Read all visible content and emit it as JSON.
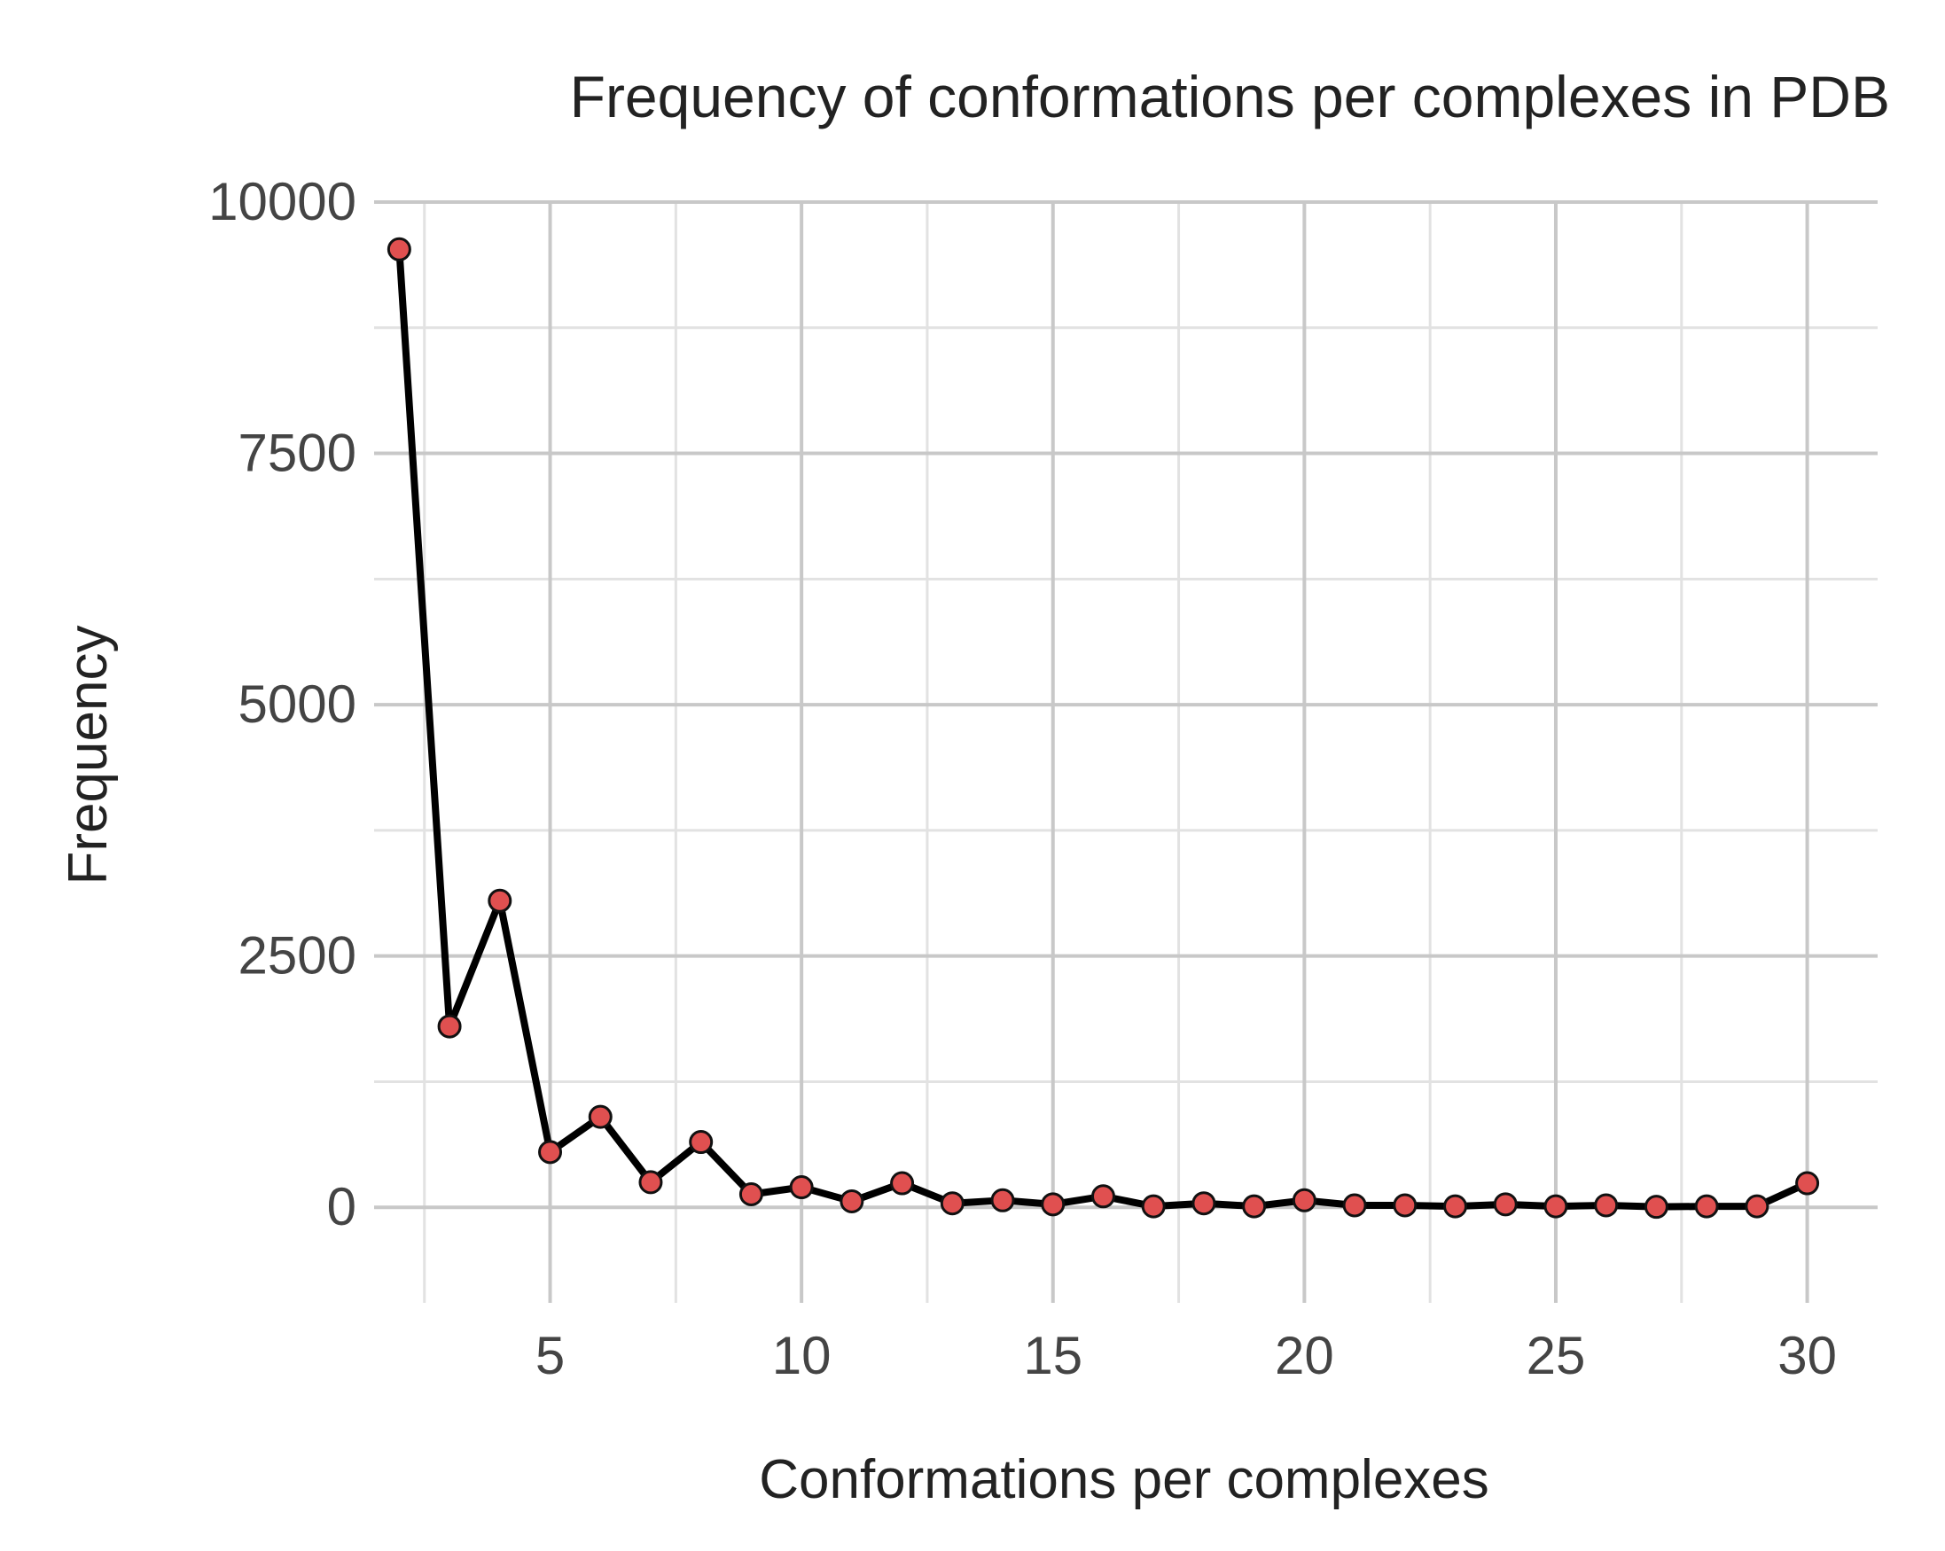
{
  "chart_data": {
    "type": "line",
    "title": "Frequency of conformations per complexes in PDB",
    "xlabel": "Conformations per complexes",
    "ylabel": "Frequency",
    "xlim": [
      1.5,
      31.4
    ],
    "ylim": [
      -950,
      10000
    ],
    "x_ticks": [
      5,
      10,
      15,
      20,
      25,
      30
    ],
    "x_tick_labels": [
      "5",
      "10",
      "15",
      "20",
      "25",
      "30"
    ],
    "y_ticks": [
      0,
      2500,
      5000,
      7500,
      10000
    ],
    "y_tick_labels": [
      "0",
      "2500",
      "5000",
      "7500",
      "10000"
    ],
    "grid": true,
    "legend": "none",
    "series": [
      {
        "x": [
          2,
          3,
          4,
          5,
          6,
          7,
          8,
          9,
          10,
          11,
          12,
          13,
          14,
          15,
          16,
          17,
          18,
          19,
          20,
          21,
          22,
          23,
          24,
          25,
          26,
          27,
          28,
          29,
          30
        ],
        "values": [
          9530,
          1800,
          3050,
          550,
          900,
          250,
          650,
          130,
          200,
          60,
          240,
          40,
          70,
          30,
          110,
          10,
          40,
          10,
          70,
          20,
          20,
          10,
          30,
          10,
          20,
          5,
          10,
          10,
          240
        ],
        "line_color": "#000000",
        "point_color": "#e05050",
        "point_stroke": "#111111"
      }
    ],
    "colors": {
      "grid_major": "#c8c8c8",
      "grid_minor": "#e2e2e2",
      "text": "#222222",
      "tick_text": "#444444"
    }
  }
}
